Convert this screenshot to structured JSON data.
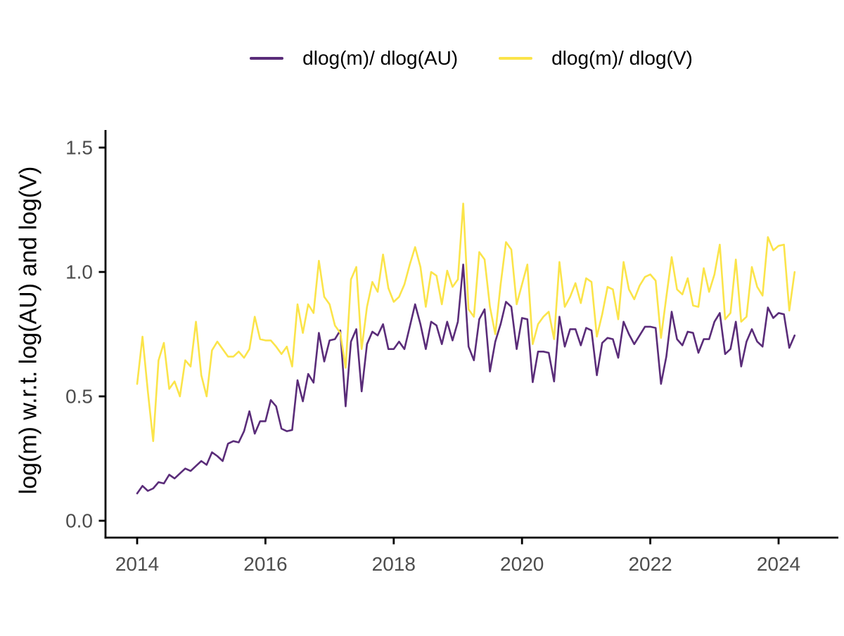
{
  "figure": {
    "y_axis_title": "log(m) w.r.t. log(AU) and log(V)"
  },
  "legend": {
    "items": [
      {
        "label": "dlog(m)/ dlog(AU)",
        "color": "#5A2C79"
      },
      {
        "label": "dlog(m)/ dlog(V)",
        "color": "#FBE44A"
      }
    ]
  },
  "colors": {
    "axis": "#000000",
    "tick_label": "#4D4D4D",
    "background": "#ffffff"
  },
  "chart_data": {
    "type": "line",
    "title": "",
    "xlabel": "",
    "ylabel": "log(m) w.r.t. log(AU) and log(V)",
    "x_start_year": 2014.0,
    "x_step_years": 0.0833333,
    "x_tick_labels": [
      "2014",
      "2016",
      "2018",
      "2020",
      "2022",
      "2024"
    ],
    "x_tick_values": [
      2014,
      2016,
      2018,
      2020,
      2022,
      2024
    ],
    "y_tick_labels": [
      "0.0",
      "0.5",
      "1.0",
      "1.5"
    ],
    "y_tick_values": [
      0.0,
      0.5,
      1.0,
      1.5
    ],
    "xlim": [
      2013.5,
      2024.85
    ],
    "ylim": [
      -0.07,
      1.57
    ],
    "grid": false,
    "legend_position": "top-center",
    "series": [
      {
        "name": "dlog(m)/ dlog(AU)",
        "color": "#5A2C79",
        "values": [
          0.11,
          0.14,
          0.12,
          0.13,
          0.155,
          0.15,
          0.185,
          0.17,
          0.19,
          0.21,
          0.2,
          0.22,
          0.24,
          0.225,
          0.275,
          0.26,
          0.24,
          0.31,
          0.32,
          0.315,
          0.36,
          0.44,
          0.35,
          0.4,
          0.4,
          0.485,
          0.46,
          0.37,
          0.36,
          0.365,
          0.565,
          0.48,
          0.59,
          0.555,
          0.755,
          0.64,
          0.725,
          0.73,
          0.765,
          0.46,
          0.72,
          0.77,
          0.52,
          0.71,
          0.76,
          0.745,
          0.79,
          0.69,
          0.69,
          0.72,
          0.69,
          0.78,
          0.87,
          0.79,
          0.69,
          0.8,
          0.785,
          0.71,
          0.8,
          0.725,
          0.8,
          1.03,
          0.7,
          0.645,
          0.81,
          0.85,
          0.6,
          0.72,
          0.79,
          0.88,
          0.86,
          0.69,
          0.815,
          0.81,
          0.557,
          0.68,
          0.68,
          0.675,
          0.56,
          0.82,
          0.7,
          0.77,
          0.77,
          0.705,
          0.775,
          0.765,
          0.585,
          0.715,
          0.735,
          0.73,
          0.655,
          0.8,
          0.75,
          0.71,
          0.745,
          0.78,
          0.78,
          0.775,
          0.55,
          0.66,
          0.84,
          0.73,
          0.705,
          0.76,
          0.755,
          0.675,
          0.73,
          0.73,
          0.8,
          0.835,
          0.67,
          0.69,
          0.8,
          0.62,
          0.72,
          0.77,
          0.72,
          0.7,
          0.857,
          0.815,
          0.835,
          0.83,
          0.695,
          0.745
        ]
      },
      {
        "name": "dlog(m)/ dlog(V)",
        "color": "#FBE44A",
        "values": [
          0.55,
          0.74,
          0.52,
          0.32,
          0.645,
          0.715,
          0.53,
          0.56,
          0.5,
          0.645,
          0.62,
          0.8,
          0.585,
          0.5,
          0.685,
          0.72,
          0.69,
          0.66,
          0.66,
          0.68,
          0.655,
          0.69,
          0.82,
          0.73,
          0.725,
          0.725,
          0.7,
          0.67,
          0.7,
          0.62,
          0.87,
          0.755,
          0.87,
          0.835,
          1.045,
          0.9,
          0.87,
          0.785,
          0.755,
          0.615,
          0.97,
          1.02,
          0.69,
          0.86,
          0.96,
          0.92,
          1.07,
          0.935,
          0.88,
          0.9,
          0.95,
          1.03,
          1.1,
          1.02,
          0.86,
          1.0,
          0.985,
          0.87,
          1.005,
          0.94,
          0.97,
          1.275,
          0.85,
          0.82,
          1.08,
          1.05,
          0.86,
          0.75,
          0.95,
          1.12,
          1.09,
          0.87,
          0.95,
          1.03,
          0.71,
          0.79,
          0.82,
          0.84,
          0.73,
          1.04,
          0.86,
          0.9,
          0.955,
          0.875,
          0.975,
          0.96,
          0.74,
          0.83,
          0.94,
          0.93,
          0.81,
          1.04,
          0.93,
          0.89,
          0.945,
          0.98,
          0.99,
          0.965,
          0.735,
          0.9,
          1.06,
          0.93,
          0.91,
          0.975,
          0.865,
          0.86,
          1.015,
          0.92,
          0.99,
          1.11,
          0.81,
          0.835,
          1.05,
          0.8,
          0.82,
          1.02,
          0.94,
          0.905,
          1.14,
          1.087,
          1.105,
          1.11,
          0.845,
          1.0
        ]
      }
    ]
  }
}
